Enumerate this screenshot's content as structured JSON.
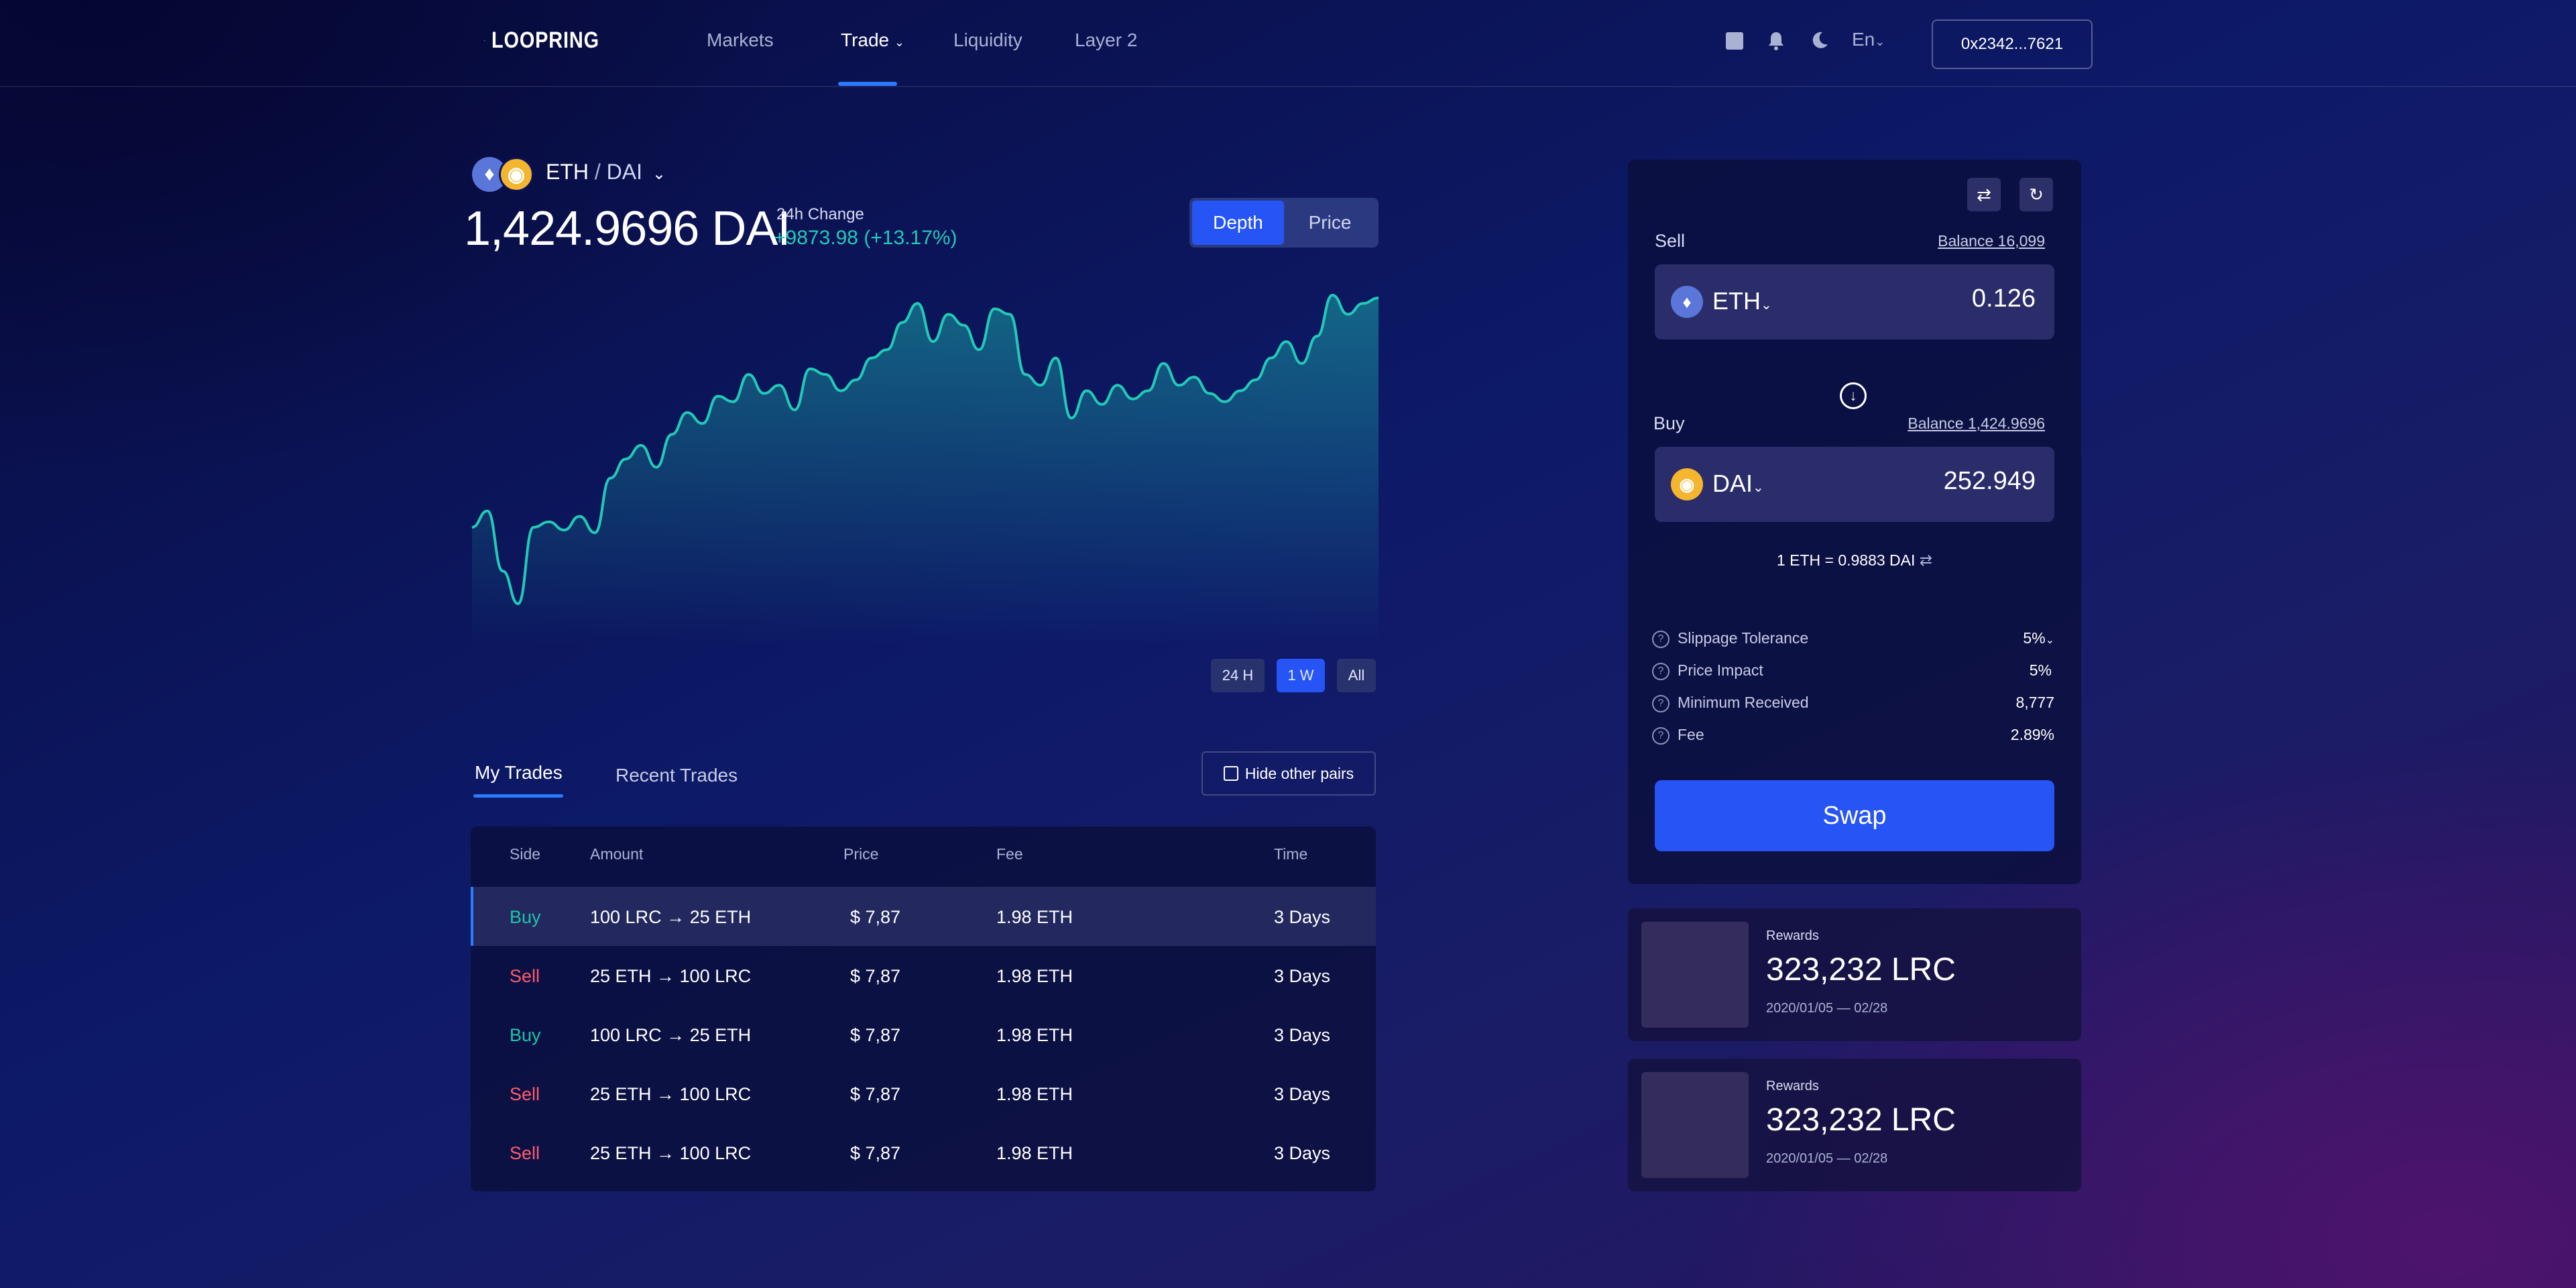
{
  "header": {
    "logo_text": "LOOPRING",
    "nav": [
      "Markets",
      "Trade",
      "Liquidity",
      "Layer 2"
    ],
    "language": "En",
    "wallet_address": "0x2342...7621"
  },
  "market": {
    "base": "ETH",
    "separator": "/",
    "quote": "DAI",
    "price": "1,424.9696 DAI",
    "change_label": "24h Change",
    "change_value": "+9873.98 (+13.17%)",
    "view_tabs": [
      "Depth",
      "Price"
    ],
    "ranges": [
      "24 H",
      "1 W",
      "All"
    ]
  },
  "chart_data": {
    "type": "area",
    "x": [
      0,
      1,
      2,
      3,
      4,
      5,
      6,
      7,
      8,
      9,
      10,
      11,
      12,
      13,
      14,
      15,
      16,
      17,
      18,
      19,
      20,
      21,
      22,
      23,
      24,
      25,
      26,
      27,
      28,
      29,
      30,
      31,
      32,
      33,
      34,
      35,
      36,
      37,
      38,
      39,
      40,
      41,
      42,
      43,
      44,
      45,
      46,
      47,
      48,
      49,
      50,
      51,
      52,
      53,
      54,
      55,
      56,
      57,
      58,
      59
    ],
    "values": [
      30,
      36,
      14,
      2,
      30,
      32,
      29,
      34,
      28,
      48,
      55,
      60,
      52,
      64,
      72,
      68,
      78,
      76,
      86,
      79,
      82,
      73,
      88,
      86,
      80,
      84,
      92,
      95,
      105,
      112,
      98,
      108,
      104,
      95,
      110,
      108,
      86,
      82,
      92,
      70,
      80,
      75,
      82,
      77,
      80,
      90,
      82,
      85,
      79,
      76,
      80,
      84,
      92,
      98,
      90,
      100,
      115,
      108,
      112,
      114
    ],
    "xlabel": "",
    "ylabel": "",
    "color": "#22c9b6"
  },
  "trades": {
    "tabs": [
      "My Trades",
      "Recent Trades"
    ],
    "filter_label": "Hide other pairs",
    "columns": [
      "Side",
      "Amount",
      "Price",
      "Fee",
      "Time"
    ],
    "rows": [
      {
        "side": "Buy",
        "amount": "100 LRC → 25 ETH",
        "price": "$ 7,87",
        "fee": "1.98 ETH",
        "time": "3 Days"
      },
      {
        "side": "Sell",
        "amount": "25 ETH → 100 LRC",
        "price": "$ 7,87",
        "fee": "1.98 ETH",
        "time": "3 Days"
      },
      {
        "side": "Buy",
        "amount": "100 LRC → 25 ETH",
        "price": "$ 7,87",
        "fee": "1.98 ETH",
        "time": "3 Days"
      },
      {
        "side": "Sell",
        "amount": "25 ETH → 100 LRC",
        "price": "$ 7,87",
        "fee": "1.98 ETH",
        "time": "3 Days"
      },
      {
        "side": "Sell",
        "amount": "25 ETH → 100 LRC",
        "price": "$ 7,87",
        "fee": "1.98 ETH",
        "time": "3 Days"
      }
    ]
  },
  "swap": {
    "sell_label": "Sell",
    "sell_balance": "Balance 16,099",
    "sell_token": "ETH",
    "sell_amount": "0.126",
    "buy_label": "Buy",
    "buy_balance": "Balance 1,424.9696",
    "buy_token": "DAI",
    "buy_amount": "252.949",
    "rate": "1 ETH = 0.9883 DAI",
    "details": [
      {
        "label": "Slippage Tolerance",
        "value": "5%"
      },
      {
        "label": "Price Impact",
        "value": "5%"
      },
      {
        "label": "Minimum Received",
        "value": "8,777"
      },
      {
        "label": "Fee",
        "value": "2.89%"
      }
    ],
    "button": "Swap"
  },
  "rewards": [
    {
      "title": "Rewards",
      "amount": "323,232 LRC",
      "period": "2020/01/05 — 02/28"
    },
    {
      "title": "Rewards",
      "amount": "323,232 LRC",
      "period": "2020/01/05 — 02/28"
    }
  ]
}
